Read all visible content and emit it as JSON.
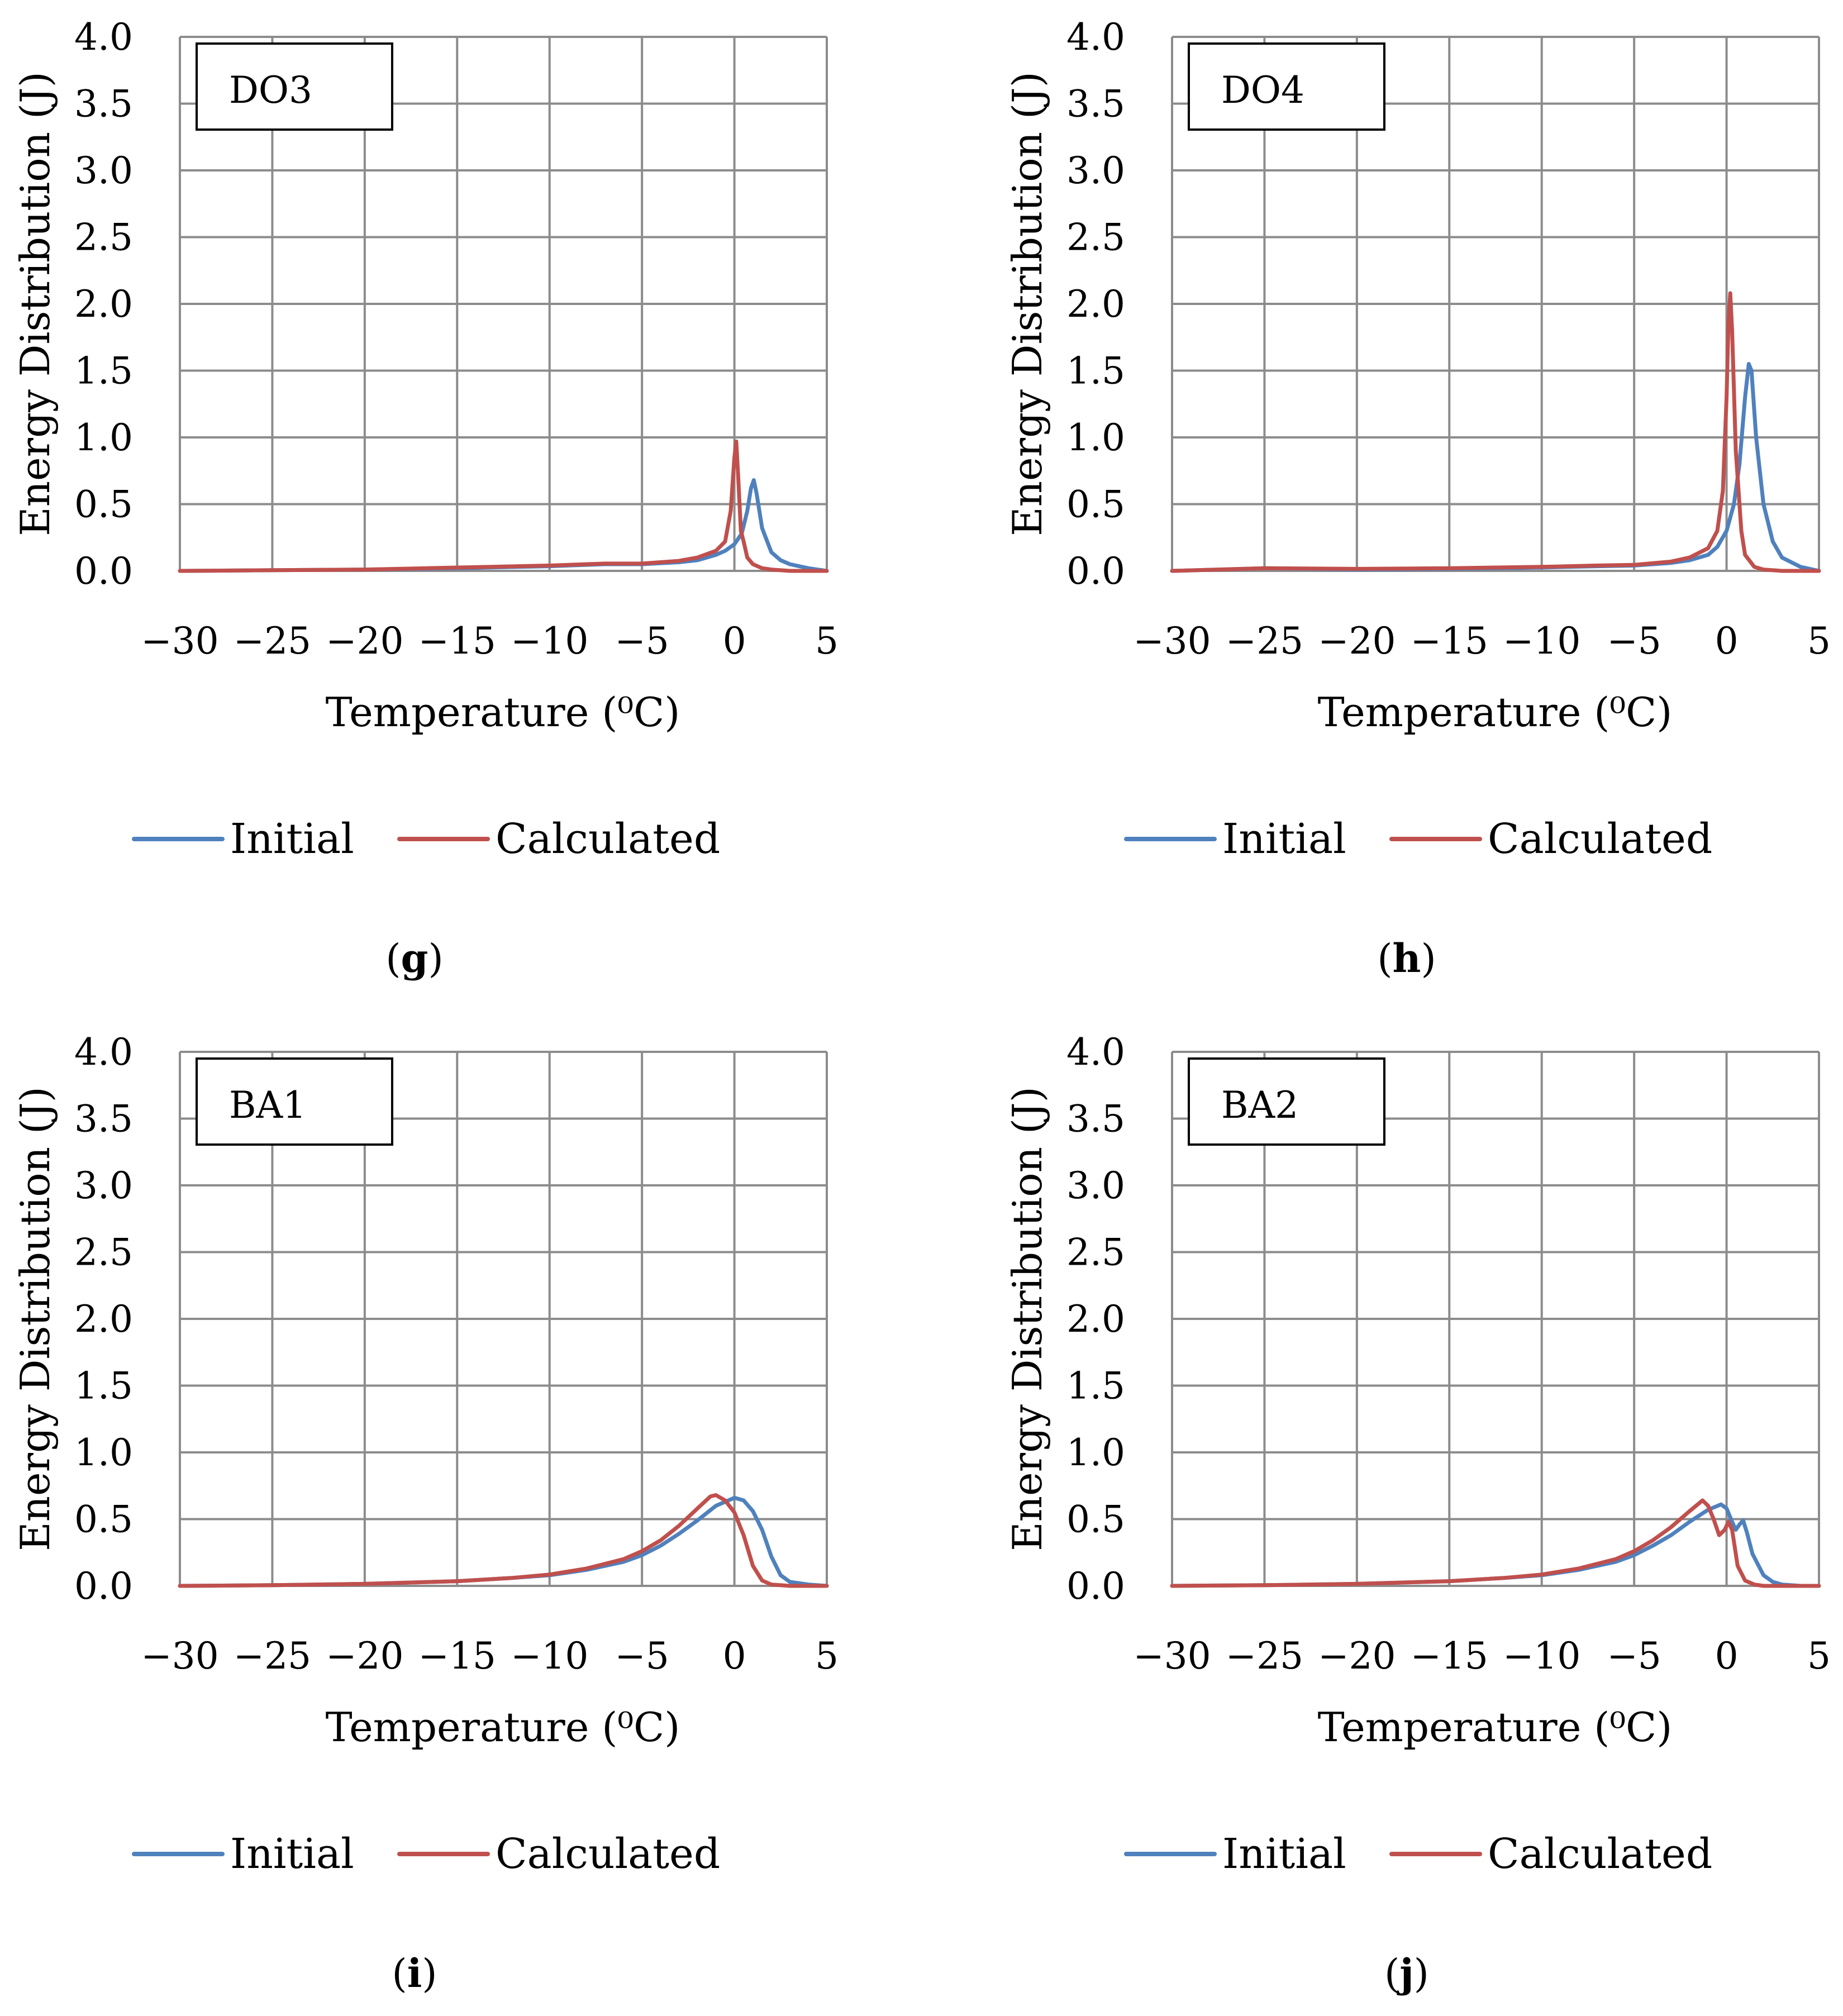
{
  "figure": {
    "panels_label": "Energy distribution comparison panels g to j"
  },
  "colors": {
    "initial": "#4f81bd",
    "calculated": "#c0504d",
    "grid": "#8c8c8c",
    "box": "#000000"
  },
  "chart_data": [
    {
      "type": "line",
      "panel": "g",
      "sample_label": "DO3",
      "caption_open": "(",
      "caption_letter": "g",
      "caption_close": ")",
      "xlabel": "Temperature (⁰C)",
      "ylabel": "Energy Distribution (J)",
      "xlim": [
        -30,
        5
      ],
      "ylim": [
        0,
        4
      ],
      "x_ticks": [
        -30,
        -25,
        -20,
        -15,
        -10,
        -5,
        0,
        5
      ],
      "x_tick_labels": [
        "−30",
        "−25",
        "−20",
        "−15",
        "−10",
        "−5",
        "0",
        "5"
      ],
      "y_ticks": [
        0,
        0.5,
        1,
        1.5,
        2,
        2.5,
        3,
        3.5,
        4
      ],
      "y_tick_labels": [
        "0.0",
        "0.5",
        "1.0",
        "1.5",
        "2.0",
        "2.5",
        "3.0",
        "3.5",
        "4.0"
      ],
      "grid": true,
      "legend_position": "bottom",
      "series": [
        {
          "name": "Initial",
          "x": [
            -30,
            -25,
            -20,
            -15,
            -10,
            -7,
            -5,
            -3,
            -2,
            -1,
            -0.5,
            0,
            0.4,
            0.7,
            0.9,
            1.05,
            1.2,
            1.5,
            2,
            2.5,
            3,
            4,
            5
          ],
          "y": [
            0,
            0.005,
            0.01,
            0.02,
            0.035,
            0.05,
            0.05,
            0.065,
            0.08,
            0.12,
            0.15,
            0.2,
            0.28,
            0.45,
            0.62,
            0.68,
            0.58,
            0.32,
            0.14,
            0.08,
            0.05,
            0.02,
            0
          ]
        },
        {
          "name": "Calculated",
          "x": [
            -30,
            -25,
            -20,
            -15,
            -10,
            -7,
            -5,
            -3,
            -2,
            -1,
            -0.5,
            -0.2,
            0,
            0.1,
            0.2,
            0.35,
            0.5,
            0.7,
            1,
            1.5,
            2,
            3,
            5
          ],
          "y": [
            0,
            0.005,
            0.01,
            0.025,
            0.04,
            0.055,
            0.055,
            0.075,
            0.1,
            0.15,
            0.22,
            0.45,
            0.85,
            0.97,
            0.72,
            0.3,
            0.22,
            0.1,
            0.05,
            0.02,
            0.01,
            0,
            0
          ]
        }
      ]
    },
    {
      "type": "line",
      "panel": "h",
      "sample_label": "DO4",
      "caption_open": "(",
      "caption_letter": "h",
      "caption_close": ")",
      "xlabel": "Temperature (⁰C)",
      "ylabel": "Energy Distribution (J)",
      "xlim": [
        -30,
        5
      ],
      "ylim": [
        0,
        4
      ],
      "x_ticks": [
        -30,
        -25,
        -20,
        -15,
        -10,
        -5,
        0,
        5
      ],
      "x_tick_labels": [
        "−30",
        "−25",
        "−20",
        "−15",
        "−10",
        "−5",
        "0",
        "5"
      ],
      "y_ticks": [
        0,
        0.5,
        1,
        1.5,
        2,
        2.5,
        3,
        3.5,
        4
      ],
      "y_tick_labels": [
        "0.0",
        "0.5",
        "1.0",
        "1.5",
        "2.0",
        "2.5",
        "3.0",
        "3.5",
        "4.0"
      ],
      "grid": true,
      "legend_position": "bottom",
      "series": [
        {
          "name": "Initial",
          "x": [
            -30,
            -25,
            -20,
            -15,
            -10,
            -7,
            -5,
            -3,
            -2,
            -1,
            -0.5,
            0,
            0.4,
            0.7,
            1,
            1.2,
            1.35,
            1.6,
            2,
            2.5,
            3,
            4,
            5
          ],
          "y": [
            0,
            0.02,
            0.01,
            0.015,
            0.025,
            0.035,
            0.04,
            0.06,
            0.08,
            0.12,
            0.18,
            0.3,
            0.5,
            0.8,
            1.3,
            1.55,
            1.5,
            1.0,
            0.5,
            0.22,
            0.1,
            0.03,
            0
          ]
        },
        {
          "name": "Calculated",
          "x": [
            -30,
            -25,
            -20,
            -15,
            -10,
            -7,
            -5,
            -3,
            -2,
            -1,
            -0.5,
            -0.2,
            0,
            0.1,
            0.2,
            0.3,
            0.5,
            0.8,
            1,
            1.5,
            2,
            3,
            5
          ],
          "y": [
            0,
            0.02,
            0.015,
            0.02,
            0.03,
            0.04,
            0.045,
            0.07,
            0.1,
            0.17,
            0.3,
            0.6,
            1.3,
            1.85,
            2.08,
            1.8,
            0.9,
            0.3,
            0.12,
            0.03,
            0.01,
            0,
            0
          ]
        }
      ]
    },
    {
      "type": "line",
      "panel": "i",
      "sample_label": "BA1",
      "caption_open": "(",
      "caption_letter": "i",
      "caption_close": ")",
      "xlabel": "Temperature (⁰C)",
      "ylabel": "Energy Distribution (J)",
      "xlim": [
        -30,
        5
      ],
      "ylim": [
        0,
        4
      ],
      "x_ticks": [
        -30,
        -25,
        -20,
        -15,
        -10,
        -5,
        0,
        5
      ],
      "x_tick_labels": [
        "−30",
        "−25",
        "−20",
        "−15",
        "−10",
        "−5",
        "0",
        "5"
      ],
      "y_ticks": [
        0,
        0.5,
        1,
        1.5,
        2,
        2.5,
        3,
        3.5,
        4
      ],
      "y_tick_labels": [
        "0.0",
        "0.5",
        "1.0",
        "1.5",
        "2.0",
        "2.5",
        "3.0",
        "3.5",
        "4.0"
      ],
      "grid": true,
      "legend_position": "bottom",
      "series": [
        {
          "name": "Initial",
          "x": [
            -30,
            -25,
            -20,
            -15,
            -12,
            -10,
            -8,
            -6,
            -5,
            -4,
            -3,
            -2,
            -1,
            0,
            0.5,
            1,
            1.5,
            2,
            2.5,
            3,
            4,
            5
          ],
          "y": [
            0,
            0.005,
            0.015,
            0.035,
            0.06,
            0.08,
            0.12,
            0.18,
            0.23,
            0.3,
            0.39,
            0.49,
            0.6,
            0.66,
            0.64,
            0.56,
            0.42,
            0.22,
            0.08,
            0.03,
            0.01,
            0
          ]
        },
        {
          "name": "Calculated",
          "x": [
            -30,
            -25,
            -20,
            -15,
            -12,
            -10,
            -8,
            -6,
            -5,
            -4,
            -3,
            -2,
            -1.3,
            -1,
            -0.5,
            0,
            0.5,
            1,
            1.5,
            2,
            3,
            5
          ],
          "y": [
            0,
            0.005,
            0.015,
            0.035,
            0.06,
            0.085,
            0.13,
            0.2,
            0.26,
            0.34,
            0.45,
            0.58,
            0.67,
            0.68,
            0.64,
            0.55,
            0.38,
            0.15,
            0.04,
            0.01,
            0,
            0
          ]
        }
      ]
    },
    {
      "type": "line",
      "panel": "j",
      "sample_label": "BA2",
      "caption_open": "(",
      "caption_letter": "j",
      "caption_close": ")",
      "xlabel": "Temperature (⁰C)",
      "ylabel": "Energy Distribution (J)",
      "xlim": [
        -30,
        5
      ],
      "ylim": [
        0,
        4
      ],
      "x_ticks": [
        -30,
        -25,
        -20,
        -15,
        -10,
        -5,
        0,
        5
      ],
      "x_tick_labels": [
        "−30",
        "−25",
        "−20",
        "−15",
        "−10",
        "−5",
        "0",
        "5"
      ],
      "y_ticks": [
        0,
        0.5,
        1,
        1.5,
        2,
        2.5,
        3,
        3.5,
        4
      ],
      "y_tick_labels": [
        "0.0",
        "0.5",
        "1.0",
        "1.5",
        "2.0",
        "2.5",
        "3.0",
        "3.5",
        "4.0"
      ],
      "grid": true,
      "legend_position": "bottom",
      "series": [
        {
          "name": "Initial",
          "x": [
            -30,
            -25,
            -20,
            -15,
            -12,
            -10,
            -8,
            -6,
            -5,
            -4,
            -3,
            -2,
            -1,
            -0.3,
            0,
            0.3,
            0.5,
            0.7,
            0.9,
            1.1,
            1.4,
            2,
            2.5,
            3,
            4,
            5
          ],
          "y": [
            0,
            0.005,
            0.015,
            0.035,
            0.06,
            0.08,
            0.12,
            0.18,
            0.23,
            0.3,
            0.38,
            0.48,
            0.57,
            0.61,
            0.58,
            0.48,
            0.42,
            0.46,
            0.49,
            0.4,
            0.24,
            0.08,
            0.03,
            0.01,
            0,
            0
          ]
        },
        {
          "name": "Calculated",
          "x": [
            -30,
            -25,
            -20,
            -15,
            -12,
            -10,
            -8,
            -6,
            -5,
            -4,
            -3,
            -2,
            -1.3,
            -1,
            -0.7,
            -0.4,
            -0.1,
            0.1,
            0.3,
            0.6,
            1,
            1.5,
            2,
            3,
            5
          ],
          "y": [
            0,
            0.005,
            0.015,
            0.035,
            0.06,
            0.085,
            0.13,
            0.2,
            0.26,
            0.34,
            0.44,
            0.56,
            0.64,
            0.6,
            0.5,
            0.38,
            0.42,
            0.48,
            0.42,
            0.15,
            0.04,
            0.01,
            0,
            0,
            0
          ]
        }
      ]
    }
  ]
}
